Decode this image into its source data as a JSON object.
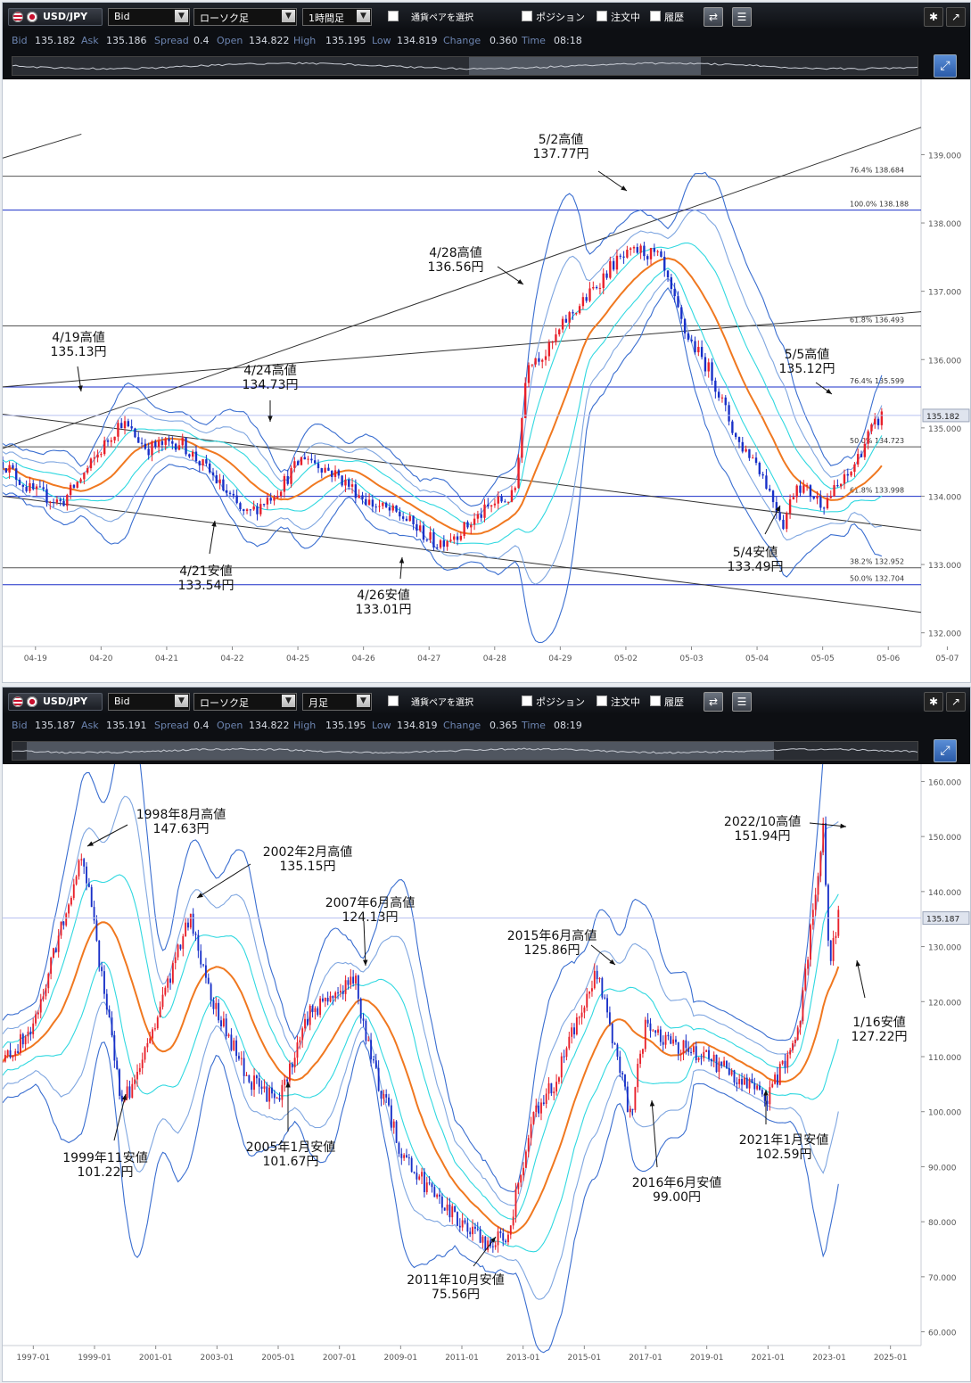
{
  "panels": [
    {
      "toolbar": {
        "pair": "USD/JPY",
        "price_type": "Bid",
        "chart_type": "ローソク足",
        "period": "1時間足",
        "select_pair": "通貨ペアを選択",
        "positions": "ポジション",
        "orders": "注文中",
        "history": "履歴"
      },
      "info": {
        "bid_label": "Bid",
        "bid": "135.182",
        "ask_label": "Ask",
        "ask": "135.186",
        "spread_label": "Spread",
        "spread": "0.4",
        "open_label": "Open",
        "open": "134.822",
        "high_label": "High",
        "high": "135.195",
        "low_label": "Low",
        "low": "134.819",
        "change_label": "Change",
        "change": "0.360",
        "time_label": "Time",
        "time": "08:18"
      },
      "chart_data": {
        "type": "line",
        "subtype": "candlestick-hourly",
        "x_ticks": [
          "04-19",
          "04-20",
          "04-21",
          "04-22",
          "04-25",
          "04-26",
          "04-27",
          "04-28",
          "04-29",
          "05-02",
          "05-03",
          "05-04",
          "05-05",
          "05-06",
          "05-07"
        ],
        "y_ticks": [
          "132.000",
          "133.000",
          "134.000",
          "135.000",
          "136.000",
          "137.000",
          "138.000",
          "139.000"
        ],
        "ylim": [
          131.8,
          140.05
        ],
        "current_price": "135.182",
        "series": [
          {
            "x": [
              0,
              0.4,
              0.9,
              1.3,
              1.8,
              2.2,
              2.7,
              3.2,
              3.7,
              4.2,
              4.6,
              5.1,
              5.6,
              6.1,
              6.6,
              7.0,
              7.5,
              7.8,
              8.0,
              8.3,
              8.6,
              8.9,
              9.3,
              9.7,
              10.0,
              10.4,
              10.8,
              11.2,
              11.5,
              11.9,
              12.1,
              12.5,
              12.9,
              13.2,
              13.4
            ],
            "values": [
              134.5,
              134.1,
              133.9,
              134.4,
              135.1,
              134.7,
              134.8,
              134.3,
              133.7,
              134.1,
              134.6,
              134.3,
              133.9,
              133.7,
              133.3,
              133.5,
              133.9,
              134.0,
              136.0,
              136.1,
              136.6,
              136.9,
              137.4,
              137.6,
              137.5,
              136.4,
              135.8,
              134.8,
              134.5,
              133.6,
              134.2,
              133.9,
              134.3,
              134.9,
              135.18
            ]
          }
        ],
        "fib_levels": [
          {
            "label": "76.4%",
            "value": "138.684"
          },
          {
            "label": "100.0%",
            "value": "138.188"
          },
          {
            "label": "61.8%",
            "value": "136.493"
          },
          {
            "label": "76.4%",
            "value": "135.599"
          },
          {
            "label": "50.0%",
            "value": "134.723"
          },
          {
            "label": "61.8%",
            "value": "133.998"
          },
          {
            "label": "38.2%",
            "value": "132.952"
          },
          {
            "label": "50.0%",
            "value": "132.704"
          }
        ],
        "annotations": [
          {
            "date": "4/19",
            "kind": "高値",
            "price": "135.13円"
          },
          {
            "date": "4/24",
            "kind": "高値",
            "price": "134.73円"
          },
          {
            "date": "4/21",
            "kind": "安値",
            "price": "133.54円"
          },
          {
            "date": "4/26",
            "kind": "安値",
            "price": "133.01円"
          },
          {
            "date": "4/28",
            "kind": "高値",
            "price": "136.56円"
          },
          {
            "date": "5/2",
            "kind": "高値",
            "price": "137.77円"
          },
          {
            "date": "5/5",
            "kind": "高値",
            "price": "135.12円"
          },
          {
            "date": "5/4",
            "kind": "安値",
            "price": "133.49円"
          }
        ],
        "colors": {
          "up": "#e8202a",
          "down": "#1830c8",
          "ma": "#f07820",
          "band1": "#3a6ed0",
          "band2": "#7fa6e0",
          "band3": "#30d8e0",
          "fib": "#1a2fc8",
          "trend": "#333333"
        }
      }
    },
    {
      "toolbar": {
        "pair": "USD/JPY",
        "price_type": "Bid",
        "chart_type": "ローソク足",
        "period": "月足",
        "select_pair": "通貨ペアを選択",
        "positions": "ポジション",
        "orders": "注文中",
        "history": "履歴"
      },
      "info": {
        "bid_label": "Bid",
        "bid": "135.187",
        "ask_label": "Ask",
        "ask": "135.191",
        "spread_label": "Spread",
        "spread": "0.4",
        "open_label": "Open",
        "open": "134.822",
        "high_label": "High",
        "high": "135.195",
        "low_label": "Low",
        "low": "134.819",
        "change_label": "Change",
        "change": "0.365",
        "time_label": "Time",
        "time": "08:19"
      },
      "chart_data": {
        "type": "line",
        "subtype": "candlestick-monthly",
        "x_ticks": [
          "1997-01",
          "1999-01",
          "2001-01",
          "2003-01",
          "2005-01",
          "2007-01",
          "2009-01",
          "2011-01",
          "2013-01",
          "2015-01",
          "2017-01",
          "2019-01",
          "2021-01",
          "2023-01",
          "2025-01"
        ],
        "y_ticks": [
          "60.000",
          "70.000",
          "80.000",
          "90.000",
          "100.000",
          "110.000",
          "120.000",
          "130.000",
          "140.000",
          "150.000",
          "160.000"
        ],
        "ylim": [
          57.5,
          162.5
        ],
        "current_price": "135.187",
        "series": [
          {
            "x": [
              1996.0,
              1997.0,
              1998.6,
              1999.9,
              2000.5,
              2002.1,
              2003.0,
              2004.0,
              2005.0,
              2006.0,
              2007.5,
              2008.0,
              2009.0,
              2010.0,
              2011.8,
              2012.5,
              2013.4,
              2014.0,
              2015.4,
              2016.5,
              2017.0,
              2018.0,
              2019.0,
              2020.0,
              2021.0,
              2022.0,
              2022.8,
              2023.0,
              2023.3
            ],
            "values": [
              109,
              115,
              147.6,
              101.2,
              108,
              135.2,
              118,
              106,
              101.7,
              118,
              124.1,
              110,
              93,
              85,
              75.6,
              78,
              100,
              105,
              125.9,
              99,
              116,
              112,
              110,
              106,
              102.6,
              115,
              151.9,
              127.2,
              135.2
            ]
          }
        ],
        "annotations": [
          {
            "date": "1998年8月",
            "kind": "高値",
            "price": "147.63円"
          },
          {
            "date": "2002年2月",
            "kind": "高値",
            "price": "135.15円"
          },
          {
            "date": "2007年6月",
            "kind": "高値",
            "price": "124.13円"
          },
          {
            "date": "2015年6月",
            "kind": "高値",
            "price": "125.86円"
          },
          {
            "date": "2022/10",
            "kind": "高値",
            "price": "151.94円"
          },
          {
            "date": "1/16",
            "kind": "安値",
            "price": "127.22円"
          },
          {
            "date": "1999年11",
            "kind": "安値",
            "price": "101.22円"
          },
          {
            "date": "2005年1月",
            "kind": "安値",
            "price": "101.67円"
          },
          {
            "date": "2011年10月",
            "kind": "安値",
            "price": "75.56円"
          },
          {
            "date": "2016年6月",
            "kind": "安値",
            "price": "99.00円"
          },
          {
            "date": "2021年1月",
            "kind": "安値",
            "price": "102.59円"
          }
        ],
        "colors": {
          "up": "#e8202a",
          "down": "#1830c8",
          "ma": "#f07820",
          "band1": "#3a6ed0",
          "band2": "#7fa6e0",
          "band3": "#30d8e0",
          "trend": "#333333"
        }
      }
    }
  ]
}
